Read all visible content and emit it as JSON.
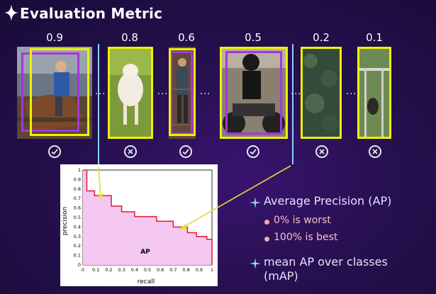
{
  "title": "Evaluation Metric",
  "detections": [
    {
      "score": "0.9",
      "correct": true
    },
    {
      "score": "0.8",
      "correct": false
    },
    {
      "score": "0.6",
      "correct": true
    },
    {
      "score": "0.5",
      "correct": true
    },
    {
      "score": "0.2",
      "correct": false
    },
    {
      "score": "0.1",
      "correct": false
    }
  ],
  "ellipsis": "...",
  "bullets": {
    "ap": "Average Precision (AP)",
    "worst": "0% is worst",
    "best": "100% is best",
    "map_line1": "mean AP over classes",
    "map_line2": "(mAP)"
  },
  "colors": {
    "ground_truth_box": "#a735e0",
    "detection_box": "#eef200",
    "pr_fill": "#f4c8f0",
    "pr_curve": "#e0283c",
    "pr_raw": "#6fd6e0",
    "arrow": "#e7d93a"
  },
  "chart_data": {
    "type": "area",
    "xlabel": "recall",
    "ylabel": "precision",
    "annotation": "AP",
    "xlim": [
      0,
      1
    ],
    "ylim": [
      0,
      1
    ],
    "xticks": [
      "0",
      "0.1",
      "0.2",
      "0.3",
      "0.4",
      "0.5",
      "0.6",
      "0.7",
      "0.8",
      "0.9",
      "1"
    ],
    "yticks": [
      "0",
      "0.1",
      "0.2",
      "0.3",
      "0.4",
      "0.5",
      "0.6",
      "0.7",
      "0.8",
      "0.9",
      "1"
    ],
    "interpolated_precision": [
      {
        "x": 0.0,
        "y": 1.0
      },
      {
        "x": 0.03,
        "y": 1.0
      },
      {
        "x": 0.03,
        "y": 0.78
      },
      {
        "x": 0.09,
        "y": 0.78
      },
      {
        "x": 0.09,
        "y": 0.73
      },
      {
        "x": 0.22,
        "y": 0.73
      },
      {
        "x": 0.22,
        "y": 0.62
      },
      {
        "x": 0.3,
        "y": 0.62
      },
      {
        "x": 0.3,
        "y": 0.56
      },
      {
        "x": 0.4,
        "y": 0.56
      },
      {
        "x": 0.4,
        "y": 0.51
      },
      {
        "x": 0.57,
        "y": 0.51
      },
      {
        "x": 0.57,
        "y": 0.46
      },
      {
        "x": 0.7,
        "y": 0.46
      },
      {
        "x": 0.7,
        "y": 0.4
      },
      {
        "x": 0.81,
        "y": 0.4
      },
      {
        "x": 0.81,
        "y": 0.34
      },
      {
        "x": 0.88,
        "y": 0.34
      },
      {
        "x": 0.88,
        "y": 0.3
      },
      {
        "x": 0.96,
        "y": 0.3
      },
      {
        "x": 0.96,
        "y": 0.27
      },
      {
        "x": 1.0,
        "y": 0.27
      }
    ]
  }
}
